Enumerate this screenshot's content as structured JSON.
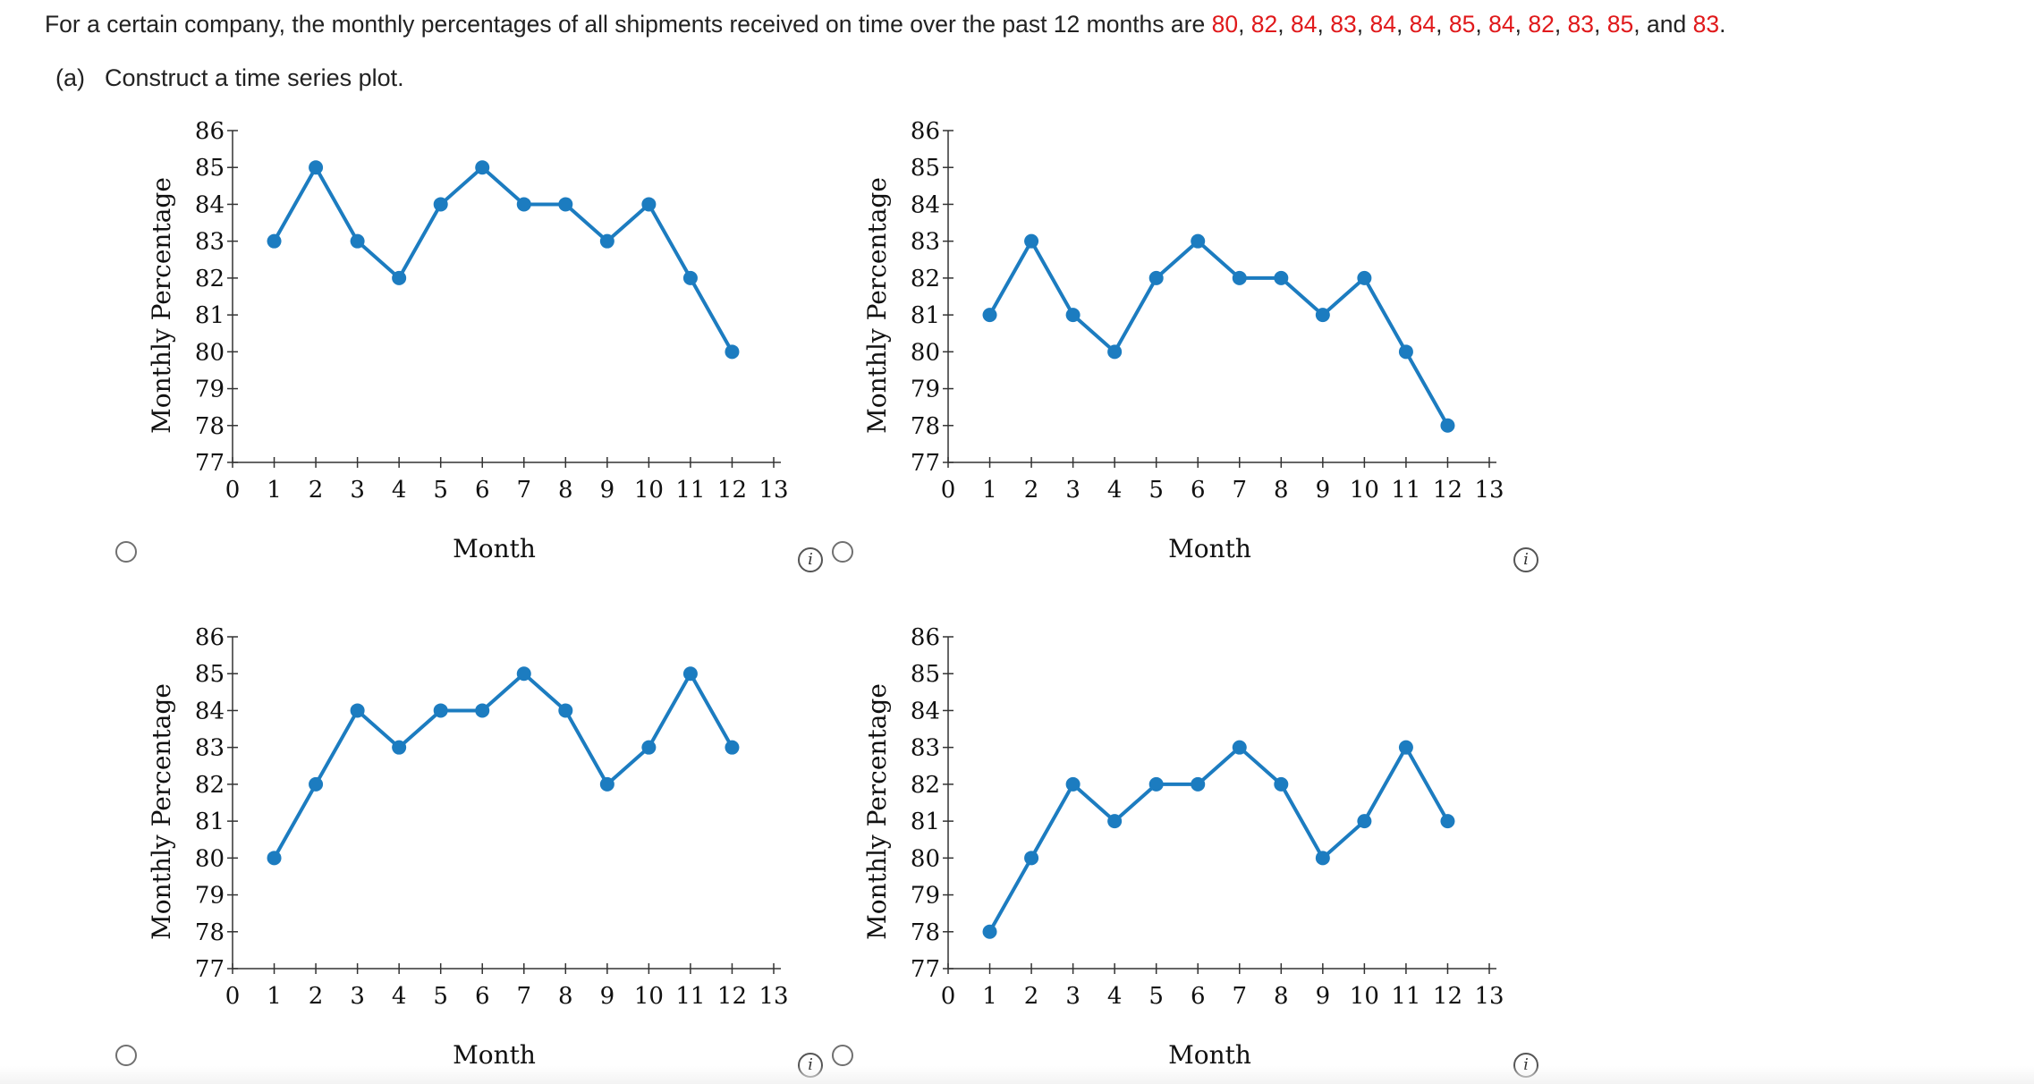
{
  "question": {
    "prefix": "For a certain company, the monthly percentages of all shipments received on time over the past 12 months are ",
    "values": [
      "80",
      "82",
      "84",
      "83",
      "84",
      "84",
      "85",
      "84",
      "82",
      "83",
      "85"
    ],
    "last_value": "83",
    "and_word": "and",
    "end": "."
  },
  "part_a": {
    "label": "(a)",
    "text": "Construct a time series plot."
  },
  "info_icon_glyph": "i",
  "colors": {
    "series": "#1c7cc0",
    "highlight_number": "#e0191b"
  },
  "chart_data": [
    {
      "type": "line",
      "xlabel": "Month",
      "ylabel": "Monthly Percentage",
      "x_ticks": [
        0,
        1,
        2,
        3,
        4,
        5,
        6,
        7,
        8,
        9,
        10,
        11,
        12,
        13
      ],
      "y_ticks": [
        77,
        78,
        79,
        80,
        81,
        82,
        83,
        84,
        85,
        86
      ],
      "xlim": [
        0,
        13
      ],
      "ylim": [
        77,
        86
      ],
      "x": [
        1,
        2,
        3,
        4,
        5,
        6,
        7,
        8,
        9,
        10,
        11,
        12
      ],
      "series": [
        {
          "values": [
            83,
            85,
            83,
            82,
            84,
            85,
            84,
            84,
            83,
            84,
            82,
            80
          ]
        }
      ]
    },
    {
      "type": "line",
      "xlabel": "Month",
      "ylabel": "Monthly Percentage",
      "x_ticks": [
        0,
        1,
        2,
        3,
        4,
        5,
        6,
        7,
        8,
        9,
        10,
        11,
        12,
        13
      ],
      "y_ticks": [
        77,
        78,
        79,
        80,
        81,
        82,
        83,
        84,
        85,
        86
      ],
      "xlim": [
        0,
        13
      ],
      "ylim": [
        77,
        86
      ],
      "x": [
        1,
        2,
        3,
        4,
        5,
        6,
        7,
        8,
        9,
        10,
        11,
        12
      ],
      "series": [
        {
          "values": [
            81,
            83,
            81,
            80,
            82,
            83,
            82,
            82,
            81,
            82,
            80,
            78
          ]
        }
      ]
    },
    {
      "type": "line",
      "xlabel": "Month",
      "ylabel": "Monthly Percentage",
      "x_ticks": [
        0,
        1,
        2,
        3,
        4,
        5,
        6,
        7,
        8,
        9,
        10,
        11,
        12,
        13
      ],
      "y_ticks": [
        77,
        78,
        79,
        80,
        81,
        82,
        83,
        84,
        85,
        86
      ],
      "xlim": [
        0,
        13
      ],
      "ylim": [
        77,
        86
      ],
      "x": [
        1,
        2,
        3,
        4,
        5,
        6,
        7,
        8,
        9,
        10,
        11,
        12
      ],
      "series": [
        {
          "values": [
            80,
            82,
            84,
            83,
            84,
            84,
            85,
            84,
            82,
            83,
            85,
            83
          ]
        }
      ]
    },
    {
      "type": "line",
      "xlabel": "Month",
      "ylabel": "Monthly Percentage",
      "x_ticks": [
        0,
        1,
        2,
        3,
        4,
        5,
        6,
        7,
        8,
        9,
        10,
        11,
        12,
        13
      ],
      "y_ticks": [
        77,
        78,
        79,
        80,
        81,
        82,
        83,
        84,
        85,
        86
      ],
      "xlim": [
        0,
        13
      ],
      "ylim": [
        77,
        86
      ],
      "x": [
        1,
        2,
        3,
        4,
        5,
        6,
        7,
        8,
        9,
        10,
        11,
        12
      ],
      "series": [
        {
          "values": [
            78,
            80,
            82,
            81,
            82,
            82,
            83,
            82,
            80,
            81,
            83,
            81
          ]
        }
      ]
    }
  ]
}
